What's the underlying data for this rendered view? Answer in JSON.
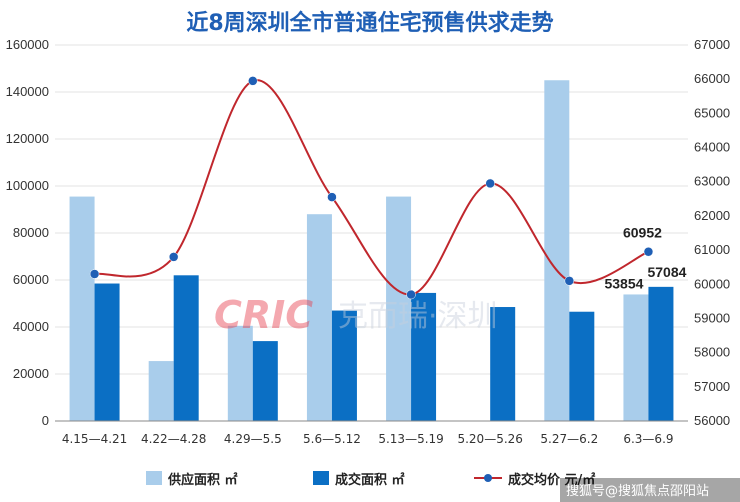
{
  "chart_data": {
    "type": "bar",
    "title": "近8周深圳全市普通住宅预售供求走势",
    "categories": [
      "4.15—4.21",
      "4.22—4.28",
      "4.29—5.5",
      "5.6—5.12",
      "5.13—5.19",
      "5.20—5.26",
      "5.27—6.2",
      "6.3—6.9"
    ],
    "series": [
      {
        "name": "供应面积 ㎡",
        "kind": "bar",
        "axis": "left",
        "color": "#a9cdeb",
        "values": [
          95500,
          25500,
          40500,
          88000,
          95500,
          0,
          145000,
          53854
        ]
      },
      {
        "name": "成交面积 ㎡",
        "kind": "bar",
        "axis": "left",
        "color": "#0b6fc4",
        "values": [
          58500,
          62000,
          34000,
          47000,
          54500,
          48500,
          46500,
          57084
        ]
      },
      {
        "name": "成交均价 元/㎡",
        "kind": "line",
        "axis": "right",
        "color": "#c0272d",
        "marker_color": "#1f5fb5",
        "values": [
          60300,
          60800,
          65950,
          62550,
          59700,
          62950,
          60100,
          60952
        ]
      }
    ],
    "y_left": {
      "ylim": [
        0,
        160000
      ],
      "ticks": [
        0,
        20000,
        40000,
        60000,
        80000,
        100000,
        120000,
        140000,
        160000
      ]
    },
    "y_right": {
      "ylim": [
        56000,
        67000
      ],
      "ticks": [
        56000,
        57000,
        58000,
        59000,
        60000,
        61000,
        62000,
        63000,
        64000,
        65000,
        66000,
        67000
      ]
    },
    "data_labels": [
      {
        "series": 0,
        "index": 7,
        "text": "53854"
      },
      {
        "series": 1,
        "index": 7,
        "text": "57084"
      },
      {
        "series": 2,
        "index": 7,
        "text": "60952"
      }
    ],
    "legend_position": "bottom",
    "grid": true
  },
  "watermark": {
    "logo": "CRIC",
    "text": "克而瑞·深圳"
  },
  "corner_text": "搜狐号@搜狐焦点邵阳站"
}
